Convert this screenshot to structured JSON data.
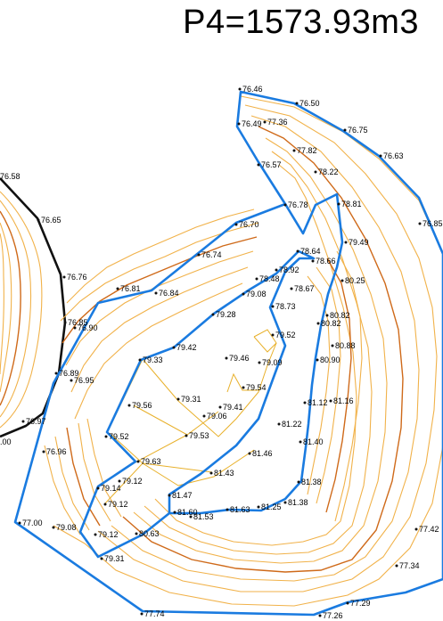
{
  "title": "P4=1573.93m3",
  "colors": {
    "boundary": "#1a7be0",
    "contour": "#f1b24a",
    "contour_major": "#cf6a1a",
    "adjacent_boundary": "#111111"
  },
  "labels": [
    {
      "text": "76.46"
    },
    {
      "text": "76.50"
    },
    {
      "text": "76.49"
    },
    {
      "text": "77.36"
    },
    {
      "text": "76.75"
    },
    {
      "text": "77.82"
    },
    {
      "text": "76.63"
    },
    {
      "text": "76.57"
    },
    {
      "text": "78.22"
    },
    {
      "text": "76.78"
    },
    {
      "text": "78.81"
    },
    {
      "text": "76.70"
    },
    {
      "text": "76.85"
    },
    {
      "text": "79.49"
    },
    {
      "text": "78.64"
    },
    {
      "text": "76.74"
    },
    {
      "text": "78.66"
    },
    {
      "text": "78.92"
    },
    {
      "text": "78.48"
    },
    {
      "text": "80.25"
    },
    {
      "text": "76.81"
    },
    {
      "text": "76.84"
    },
    {
      "text": "79.08"
    },
    {
      "text": "78.67"
    },
    {
      "text": "78.73"
    },
    {
      "text": "80.82"
    },
    {
      "text": "79.28"
    },
    {
      "text": "80.82"
    },
    {
      "text": "76.85"
    },
    {
      "text": "76.90"
    },
    {
      "text": "79.52"
    },
    {
      "text": "80.88"
    },
    {
      "text": "79.42"
    },
    {
      "text": "79.33"
    },
    {
      "text": "79.46"
    },
    {
      "text": "79.09"
    },
    {
      "text": "80.90"
    },
    {
      "text": "76.89"
    },
    {
      "text": "76.95"
    },
    {
      "text": "79.54"
    },
    {
      "text": "79.56"
    },
    {
      "text": "79.31"
    },
    {
      "text": "79.41"
    },
    {
      "text": "79.06"
    },
    {
      "text": "81.12"
    },
    {
      "text": "81.16"
    },
    {
      "text": "76.97"
    },
    {
      "text": "81.22"
    },
    {
      "text": "79.52"
    },
    {
      "text": "79.53"
    },
    {
      "text": "81.40"
    },
    {
      "text": "76.96"
    },
    {
      "text": "81.46"
    },
    {
      "text": "79.63"
    },
    {
      "text": "79.14"
    },
    {
      "text": "79.12"
    },
    {
      "text": "81.43"
    },
    {
      "text": "81.38"
    },
    {
      "text": "79.12"
    },
    {
      "text": "81.47"
    },
    {
      "text": "81.38"
    },
    {
      "text": "77.00"
    },
    {
      "text": "79.08"
    },
    {
      "text": "79.12"
    },
    {
      "text": "80.63"
    },
    {
      "text": "81.60"
    },
    {
      "text": "81.53"
    },
    {
      "text": "81.63"
    },
    {
      "text": "81.25"
    },
    {
      "text": "77.42"
    },
    {
      "text": "79.31"
    },
    {
      "text": "77.34"
    },
    {
      "text": "77.29"
    },
    {
      "text": "77.74"
    },
    {
      "text": "77.26"
    },
    {
      "text": "76.58"
    },
    {
      "text": "76.65"
    },
    {
      "text": "76.76"
    },
    {
      "text": ".00"
    }
  ]
}
